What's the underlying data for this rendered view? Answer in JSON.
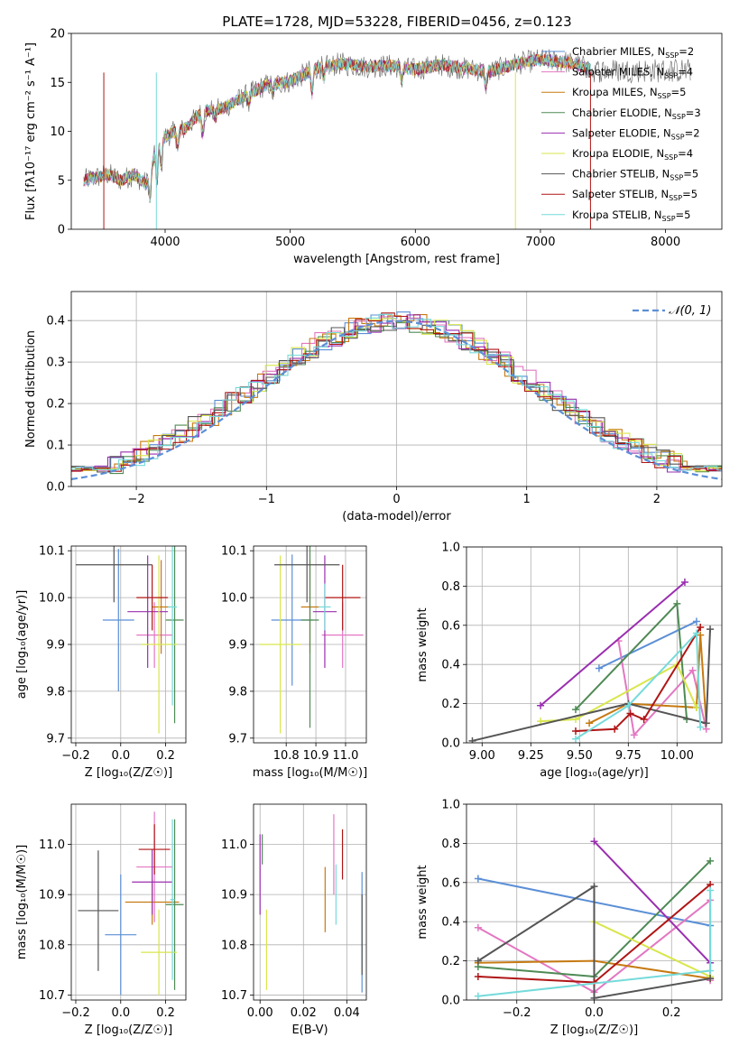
{
  "title": "PLATE=1728, MJD=53228, FIBERID=0456, z=0.123",
  "chart_data": [
    {
      "id": "spectrum",
      "type": "line",
      "xlabel": "wavelength [Angstrom, rest frame]",
      "ylabel": "Flux [fλ10⁻¹⁷ erg cm⁻² s⁻¹ A⁻¹]",
      "xlim": [
        3250,
        8450
      ],
      "ylim": [
        0,
        20
      ],
      "xticks": [
        4000,
        5000,
        6000,
        7000,
        8000
      ],
      "yticks": [
        0,
        5,
        10,
        15,
        20
      ],
      "legend_position": "top-right",
      "series": [
        {
          "name": "Chabrier MILES, N_SSP=2",
          "color": "#5b8fd6"
        },
        {
          "name": "Salpeter MILES, N_SSP=4",
          "color": "#e377c2"
        },
        {
          "name": "Kroupa MILES, N_SSP=5",
          "color": "#c77a12"
        },
        {
          "name": "Chabrier ELODIE, N_SSP=3",
          "color": "#4f8a55"
        },
        {
          "name": "Salpeter ELODIE, N_SSP=2",
          "color": "#9a2eb0"
        },
        {
          "name": "Kroupa ELODIE, N_SSP=4",
          "color": "#d9e64c"
        },
        {
          "name": "Chabrier STELIB, N_SSP=5",
          "color": "#555555"
        },
        {
          "name": "Salpeter STELIB, N_SSP=5",
          "color": "#b01515"
        },
        {
          "name": "Kroupa STELIB, N_SSP=5",
          "color": "#76dada"
        }
      ],
      "data_profile": {
        "x": [
          3350,
          3450,
          3550,
          3650,
          3750,
          3850,
          3950,
          4050,
          4150,
          4300,
          4450,
          4600,
          4800,
          5000,
          5200,
          5400,
          5600,
          5800,
          6000,
          6200,
          6400,
          6600,
          6800,
          7000,
          7200,
          7400
        ],
        "y": [
          5.0,
          5.3,
          5.6,
          5.0,
          5.6,
          4.6,
          9.0,
          9.8,
          10.2,
          12.0,
          12.3,
          13.3,
          14.7,
          15.1,
          16.4,
          16.9,
          16.6,
          16.7,
          16.3,
          16.8,
          16.4,
          16.1,
          16.9,
          17.3,
          17.1,
          16.4
        ]
      }
    },
    {
      "id": "residuals",
      "type": "histogram",
      "xlabel": "(data-model)/error",
      "ylabel": "Normed distribution",
      "xlim": [
        -2.5,
        2.5
      ],
      "ylim": [
        0,
        0.47
      ],
      "xticks": [
        -2,
        -1,
        0,
        1,
        2
      ],
      "yticks": [
        0.0,
        0.1,
        0.2,
        0.3,
        0.4
      ],
      "grid": true,
      "legend_position": "top-right",
      "reference_curve": {
        "name": "𝒩(0, 1)",
        "color": "#5b8fd6",
        "style": "dashed"
      },
      "bin_width": 0.1
    },
    {
      "id": "age-vs-Z",
      "type": "errorbar",
      "xlabel": "Z [log₁₀(Z/Z☉)]",
      "ylabel": "age  [log₁₀(age/yr)]",
      "xlim": [
        -0.22,
        0.29
      ],
      "ylim": [
        9.69,
        10.11
      ],
      "xticks": [
        -0.2,
        0.0,
        0.2
      ],
      "yticks": [
        9.7,
        9.8,
        9.9,
        10.0,
        10.1
      ],
      "grid": true,
      "points": [
        {
          "x": -0.01,
          "y": 9.952,
          "dx": 0.07,
          "dy": 0.152
        },
        {
          "x": 0.15,
          "y": 9.92,
          "dx": 0.08,
          "dy": 0.07
        },
        {
          "x": 0.18,
          "y": 9.98,
          "dx": 0.04,
          "dy": 0.1
        },
        {
          "x": 0.24,
          "y": 9.952,
          "dx": 0.04,
          "dy": 0.22
        },
        {
          "x": 0.12,
          "y": 9.97,
          "dx": 0.09,
          "dy": 0.12
        },
        {
          "x": 0.17,
          "y": 9.9,
          "dx": 0.08,
          "dy": 0.19
        },
        {
          "x": -0.03,
          "y": 10.07,
          "dx": 0.17,
          "dy": 0.08
        },
        {
          "x": 0.14,
          "y": 10.0,
          "dx": 0.07,
          "dy": 0.07
        },
        {
          "x": 0.23,
          "y": 9.98,
          "dx": 0.02,
          "dy": 0.21
        }
      ]
    },
    {
      "id": "age-vs-mass",
      "type": "errorbar",
      "xlabel": "mass [log₁₀(M/M☉)]",
      "ylabel": "",
      "xlim": [
        10.69,
        11.07
      ],
      "ylim": [
        9.69,
        10.11
      ],
      "xticks": [
        10.8,
        10.9,
        11.0
      ],
      "yticks": [
        9.7,
        9.8,
        9.9,
        10.0,
        10.1
      ],
      "grid": true,
      "points": [
        {
          "x": 10.82,
          "y": 9.952,
          "dx": 0.07,
          "dy": 0.14
        },
        {
          "x": 10.99,
          "y": 9.92,
          "dx": 0.07,
          "dy": 0.07
        },
        {
          "x": 10.88,
          "y": 9.98,
          "dx": 0.03,
          "dy": 0.1
        },
        {
          "x": 10.88,
          "y": 9.952,
          "dx": 0.03,
          "dy": 0.23
        },
        {
          "x": 10.93,
          "y": 9.97,
          "dx": 0.04,
          "dy": 0.12
        },
        {
          "x": 10.78,
          "y": 9.9,
          "dx": 0.07,
          "dy": 0.19
        },
        {
          "x": 10.87,
          "y": 10.07,
          "dx": 0.11,
          "dy": 0.08
        },
        {
          "x": 10.99,
          "y": 10.0,
          "dx": 0.06,
          "dy": 0.07
        },
        {
          "x": 10.93,
          "y": 9.98,
          "dx": 0.02,
          "dy": 0.05
        }
      ]
    },
    {
      "id": "mass-vs-Z",
      "type": "errorbar",
      "xlabel": "Z [log₁₀(Z/Z☉)]",
      "ylabel": "mass [log₁₀(M/M☉)]",
      "xlim": [
        -0.22,
        0.29
      ],
      "ylim": [
        10.69,
        11.08
      ],
      "xticks": [
        -0.2,
        0.0,
        0.2
      ],
      "yticks": [
        10.7,
        10.8,
        10.9,
        11.0
      ],
      "grid": true,
      "points": [
        {
          "x": 0.0,
          "y": 10.82,
          "dx": 0.07,
          "dy": 0.12
        },
        {
          "x": 0.15,
          "y": 10.955,
          "dx": 0.08,
          "dy": 0.11
        },
        {
          "x": 0.14,
          "y": 10.885,
          "dx": 0.12,
          "dy": 0.045
        },
        {
          "x": 0.24,
          "y": 10.88,
          "dx": 0.04,
          "dy": 0.17
        },
        {
          "x": 0.14,
          "y": 10.925,
          "dx": 0.09,
          "dy": 0.065
        },
        {
          "x": 0.17,
          "y": 10.785,
          "dx": 0.08,
          "dy": 0.085
        },
        {
          "x": -0.1,
          "y": 10.868,
          "dx": 0.09,
          "dy": 0.12
        },
        {
          "x": 0.15,
          "y": 10.99,
          "dx": 0.07,
          "dy": 0.05
        },
        {
          "x": 0.23,
          "y": 10.89,
          "dx": 0.01,
          "dy": 0.16
        }
      ]
    },
    {
      "id": "mass-vs-EBV",
      "type": "errorbar",
      "xlabel": "E(B-V)",
      "ylabel": "",
      "xlim": [
        -0.003,
        0.049
      ],
      "ylim": [
        10.69,
        11.08
      ],
      "xticks": [
        0.0,
        0.02,
        0.04
      ],
      "yticks": [
        10.7,
        10.8,
        10.9,
        11.0
      ],
      "grid": true,
      "points": [
        {
          "x": 0.047,
          "y": 10.825,
          "dx": 0,
          "dy": 0.12
        },
        {
          "x": 0.034,
          "y": 10.98,
          "dx": 0,
          "dy": 0.08
        },
        {
          "x": 0.03,
          "y": 10.89,
          "dx": 0,
          "dy": 0.065
        },
        {
          "x": 0.001,
          "y": 10.99,
          "dx": 0,
          "dy": 0.03
        },
        {
          "x": 0.0,
          "y": 10.94,
          "dx": 0,
          "dy": 0.08
        },
        {
          "x": 0.003,
          "y": 10.79,
          "dx": 0,
          "dy": 0.08
        },
        {
          "x": 0.047,
          "y": 10.82,
          "dx": 0,
          "dy": 0.08
        },
        {
          "x": 0.038,
          "y": 10.98,
          "dx": 0,
          "dy": 0.05
        },
        {
          "x": 0.035,
          "y": 10.9,
          "dx": 0,
          "dy": 0.06
        }
      ]
    },
    {
      "id": "weight-vs-age",
      "type": "line",
      "xlabel": "age  [log₁₀(age/yr)]",
      "ylabel": "mass weight",
      "xlim": [
        8.92,
        10.23
      ],
      "ylim": [
        0,
        1
      ],
      "xticks": [
        9.0,
        9.25,
        9.5,
        9.75,
        10.0
      ],
      "yticks": [
        0.0,
        0.2,
        0.4,
        0.6,
        0.8,
        1.0
      ],
      "grid": true,
      "series": [
        {
          "name": "Chabrier MILES",
          "x": [
            9.6,
            10.1
          ],
          "y": [
            0.38,
            0.62
          ]
        },
        {
          "name": "Salpeter MILES",
          "x": [
            9.7,
            9.78,
            10.08,
            10.15
          ],
          "y": [
            0.52,
            0.04,
            0.37,
            0.07
          ]
        },
        {
          "name": "Kroupa MILES",
          "x": [
            9.55,
            9.75,
            10.1,
            10.12,
            10.15
          ],
          "y": [
            0.1,
            0.2,
            0.18,
            0.55,
            0.1
          ]
        },
        {
          "name": "Chabrier ELODIE",
          "x": [
            9.48,
            10.0,
            10.05
          ],
          "y": [
            0.17,
            0.71,
            0.12
          ]
        },
        {
          "name": "Salpeter ELODIE",
          "x": [
            9.3,
            10.04
          ],
          "y": [
            0.19,
            0.82
          ]
        },
        {
          "name": "Kroupa ELODIE",
          "x": [
            9.3,
            9.48,
            10.0,
            10.1
          ],
          "y": [
            0.11,
            0.12,
            0.4,
            0.18
          ]
        },
        {
          "name": "Chabrier STELIB",
          "x": [
            8.95,
            9.75,
            10.15,
            10.17
          ],
          "y": [
            0.01,
            0.2,
            0.1,
            0.58
          ]
        },
        {
          "name": "Salpeter STELIB",
          "x": [
            9.48,
            9.68,
            9.76,
            9.83,
            10.12
          ],
          "y": [
            0.06,
            0.07,
            0.15,
            0.12,
            0.59
          ]
        },
        {
          "name": "Kroupa STELIB",
          "x": [
            9.48,
            9.75,
            10.1,
            10.12
          ],
          "y": [
            0.02,
            0.19,
            0.56,
            0.08
          ]
        }
      ]
    },
    {
      "id": "weight-vs-Z",
      "type": "line",
      "xlabel": "Z [log₁₀(Z/Z☉)]",
      "ylabel": "mass weight",
      "xlim": [
        -0.33,
        0.33
      ],
      "ylim": [
        0,
        1
      ],
      "xticks": [
        -0.2,
        0.0,
        0.2
      ],
      "yticks": [
        0.0,
        0.2,
        0.4,
        0.6,
        0.8,
        1.0
      ],
      "grid": true,
      "series": [
        {
          "name": "Chabrier MILES",
          "x": [
            -0.3,
            0.3
          ],
          "y": [
            0.62,
            0.38
          ]
        },
        {
          "name": "Salpeter MILES",
          "x": [
            -0.3,
            0.0,
            0.3,
            0.3
          ],
          "y": [
            0.37,
            0.04,
            0.51,
            0.1
          ]
        },
        {
          "name": "Kroupa MILES",
          "x": [
            -0.3,
            0.0,
            0.3
          ],
          "y": [
            0.19,
            0.2,
            0.11
          ]
        },
        {
          "name": "Chabrier ELODIE",
          "x": [
            -0.3,
            0.0,
            0.3
          ],
          "y": [
            0.17,
            0.12,
            0.71
          ]
        },
        {
          "name": "Salpeter ELODIE",
          "x": [
            0.0,
            0.3
          ],
          "y": [
            0.81,
            0.19
          ]
        },
        {
          "name": "Kroupa ELODIE",
          "x": [
            0.0,
            0.3
          ],
          "y": [
            0.4,
            0.12
          ]
        },
        {
          "name": "Chabrier STELIB",
          "x": [
            -0.3,
            0.0,
            0.0,
            0.3
          ],
          "y": [
            0.2,
            0.58,
            0.01,
            0.11
          ]
        },
        {
          "name": "Salpeter STELIB",
          "x": [
            -0.3,
            0.0,
            0.3
          ],
          "y": [
            0.12,
            0.09,
            0.59
          ]
        },
        {
          "name": "Kroupa STELIB",
          "x": [
            -0.3,
            0.3,
            0.3
          ],
          "y": [
            0.02,
            0.15,
            0.56
          ]
        }
      ]
    }
  ]
}
